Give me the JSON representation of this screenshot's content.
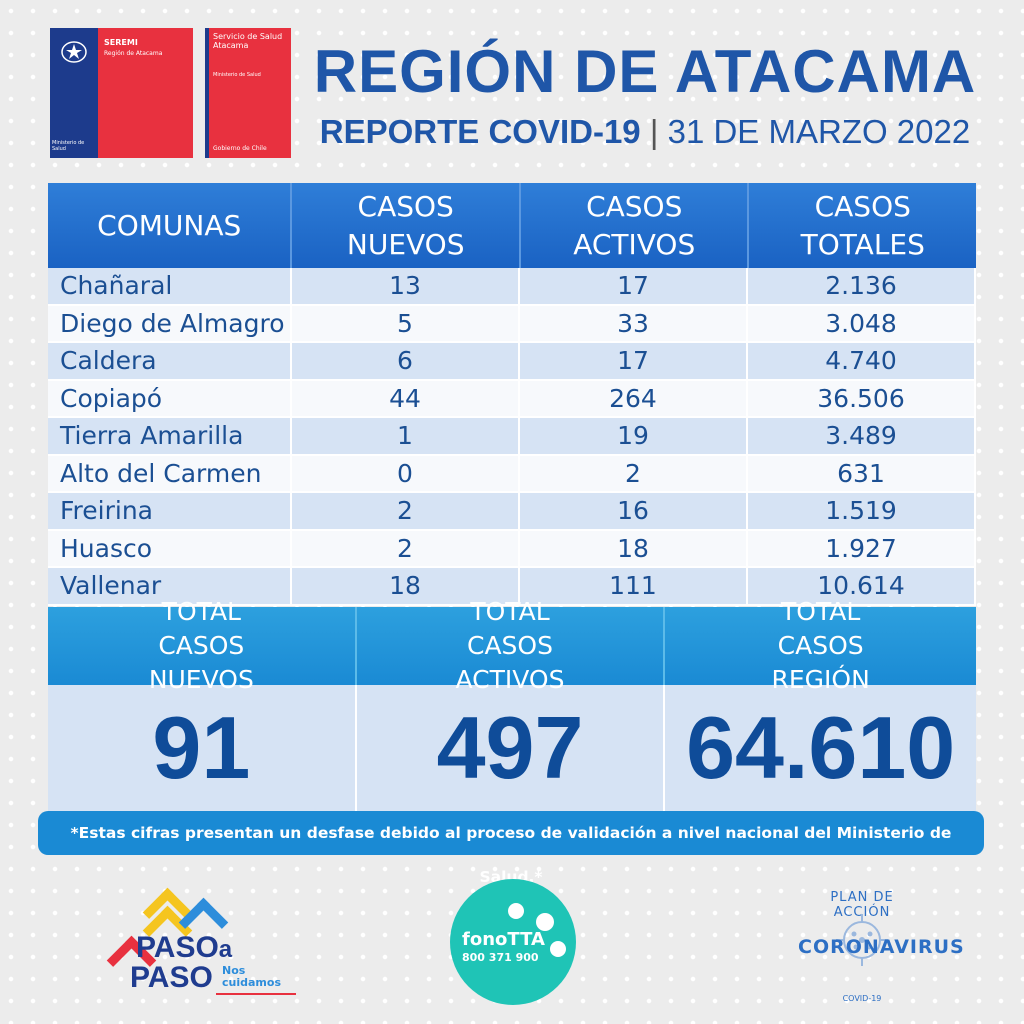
{
  "header": {
    "seremi_title": "SEREMI",
    "seremi_region": "Región de Atacama",
    "seremi_ministry": "Ministerio de Salud",
    "servicio_name": "Servicio de Salud Atacama",
    "servicio_ministry": "Ministerio de Salud",
    "servicio_gov": "Gobierno de Chile",
    "title": "REGIÓN DE ATACAMA",
    "report_label": "REPORTE COVID-19",
    "separator": "|",
    "date": "31 DE MARZO 2022"
  },
  "table": {
    "headers": [
      "COMUNAS",
      "CASOS NUEVOS",
      "CASOS ACTIVOS",
      "CASOS TOTALES"
    ],
    "rows": [
      {
        "comuna": "Chañaral",
        "nuevos": "13",
        "activos": "17",
        "totales": "2.136"
      },
      {
        "comuna": "Diego de Almagro",
        "nuevos": "5",
        "activos": "33",
        "totales": "3.048"
      },
      {
        "comuna": "Caldera",
        "nuevos": "6",
        "activos": "17",
        "totales": "4.740"
      },
      {
        "comuna": "Copiapó",
        "nuevos": "44",
        "activos": "264",
        "totales": "36.506"
      },
      {
        "comuna": "Tierra Amarilla",
        "nuevos": "1",
        "activos": "19",
        "totales": "3.489"
      },
      {
        "comuna": "Alto del Carmen",
        "nuevos": "0",
        "activos": "2",
        "totales": "631"
      },
      {
        "comuna": "Freirina",
        "nuevos": "2",
        "activos": "16",
        "totales": "1.519"
      },
      {
        "comuna": "Huasco",
        "nuevos": "2",
        "activos": "18",
        "totales": "1.927"
      },
      {
        "comuna": "Vallenar",
        "nuevos": "18",
        "activos": "111",
        "totales": "10.614"
      }
    ]
  },
  "totals": {
    "labels": [
      "TOTAL CASOS NUEVOS",
      "TOTAL CASOS ACTIVOS",
      "TOTAL CASOS REGIÓN"
    ],
    "values": [
      "91",
      "497",
      "64.610"
    ]
  },
  "note": "*Estas cifras presentan un desfase debido al proceso de validación a nivel nacional del Ministerio de Salud.*",
  "footer": {
    "paso_line1": "PASO",
    "paso_a": "a",
    "paso_line2": "PASO",
    "nos_cuidamos": "Nos cuidamos",
    "fono_name": "fonoTTA",
    "fono_number": "800 371 900",
    "corona_plan": "PLAN DE ACCIÓN",
    "corona_word": "CORONAVIRUS",
    "corona_covid": "COVID-19"
  },
  "colors": {
    "title_blue": "#1f56a8",
    "header_blue": "#1a62c3",
    "totals_blue": "#1a8ad4",
    "gov_red": "#e8313f",
    "gov_blue": "#1d3b8c",
    "fono_teal": "#1fc4b6"
  },
  "icons": [
    "chile-shield-icon",
    "virus-icon",
    "chevron-up-icon",
    "phone-icon"
  ]
}
